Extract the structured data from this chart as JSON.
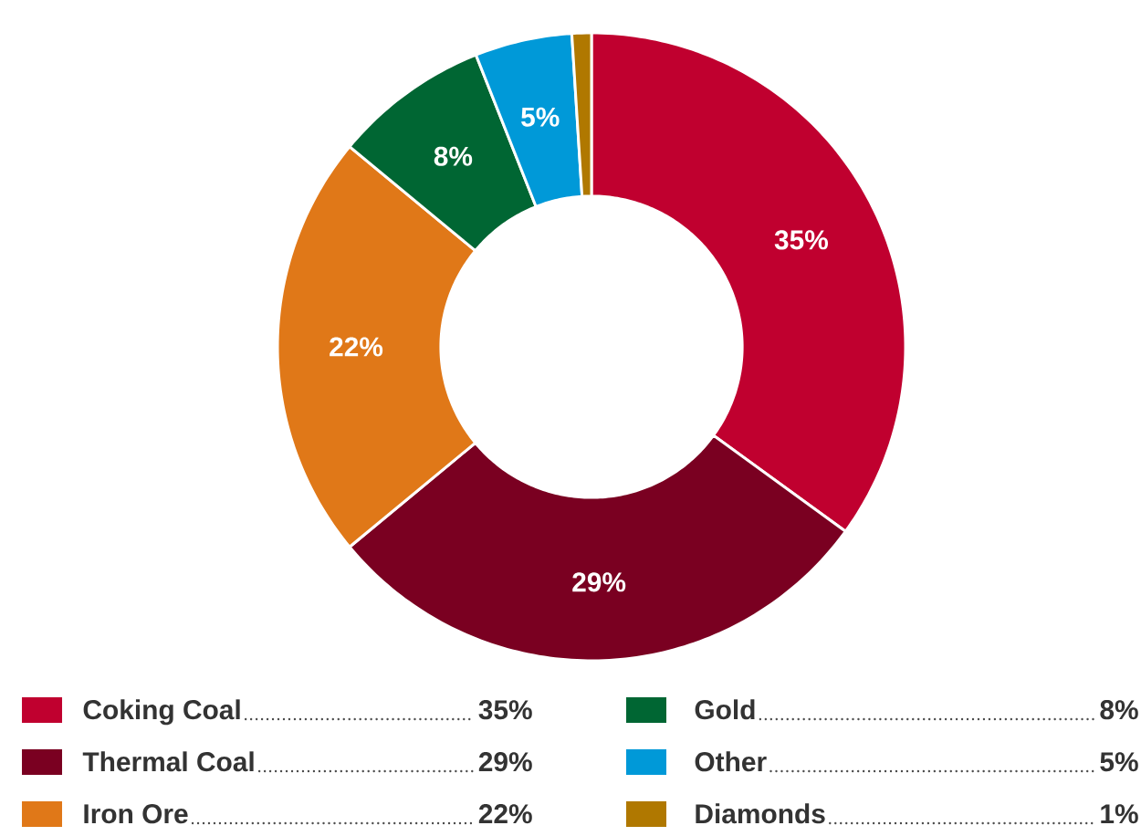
{
  "chart_data": {
    "type": "donut",
    "categories": [
      "Coking Coal",
      "Thermal Coal",
      "Iron Ore",
      "Gold",
      "Other",
      "Diamonds"
    ],
    "values": [
      35,
      29,
      22,
      8,
      5,
      1
    ],
    "value_labels": [
      "35%",
      "29%",
      "22%",
      "8%",
      "5%",
      "1%"
    ],
    "colors": [
      "#c0002f",
      "#7a0021",
      "#e07818",
      "#006633",
      "#0099d8",
      "#b07800"
    ],
    "legend": "bottom"
  }
}
